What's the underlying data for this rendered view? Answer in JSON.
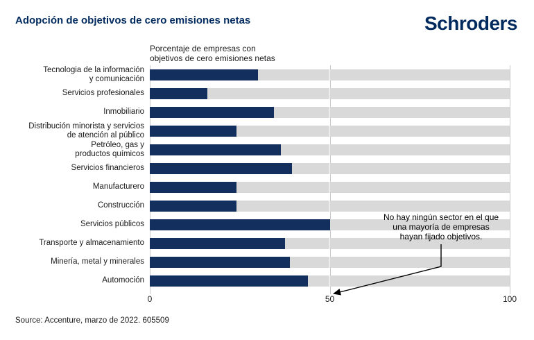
{
  "header": {
    "title": "Adopción de objetivos de cero emisiones netas",
    "logo_text": "Schroders"
  },
  "chart_data": {
    "type": "bar",
    "orientation": "horizontal",
    "title": "Adopción de objetivos de cero emisiones netas",
    "subtitle": "Porcentaje de empresas con objetivos de cero emisiones netas",
    "subtitle_lines": [
      "Porcentaje de empresas con",
      "objetivos de cero emisiones netas"
    ],
    "categories": [
      "Tecnologia de la información y comunicación",
      "Servicios profesionales",
      "Inmobiliario",
      "Distribución minorista y servicios de atención al público",
      "Petróleo, gas y productos químicos",
      "Servicios financieros",
      "Manufacturero",
      "Construcción",
      "Servicios públicos",
      "Transporte y almacenamiento",
      "Minería, metal y minerales",
      "Automoción"
    ],
    "category_label_lines": [
      [
        "Tecnologia de la información",
        "y comunicación"
      ],
      [
        "Servicios profesionales"
      ],
      [
        "Inmobiliario"
      ],
      [
        "Distribución minorista y servicios",
        "de atención al público"
      ],
      [
        "Petróleo, gas y",
        "productos químicos"
      ],
      [
        "Servicios financieros"
      ],
      [
        "Manufacturero"
      ],
      [
        "Construcción"
      ],
      [
        "Servicios públicos"
      ],
      [
        "Transporte y almacenamiento"
      ],
      [
        "Minería, metal y minerales"
      ],
      [
        "Automoción"
      ]
    ],
    "values": [
      30,
      16,
      34.5,
      24,
      36.5,
      39.5,
      24,
      24,
      50,
      37.5,
      39,
      44
    ],
    "xlim": [
      0,
      100
    ],
    "x_ticks": [
      "0",
      "50",
      "100"
    ],
    "grid": true,
    "legend": "none",
    "annotation": "No hay ningún sector en el que una mayoría de empresas hayan fijado objetivos.",
    "annotation_lines": [
      "No hay ningún sector en el que",
      "una mayoría de empresas",
      "hayan fijado objetivos."
    ]
  },
  "footer": {
    "source": "Source: Accenture, marzo de 2022. 605509"
  },
  "colors": {
    "brand_navy": "#002a5e",
    "bar_fill": "#132f5e",
    "bar_track": "#d9d9d9",
    "gridline": "#c9c9c9",
    "text": "#1a1a1a"
  }
}
